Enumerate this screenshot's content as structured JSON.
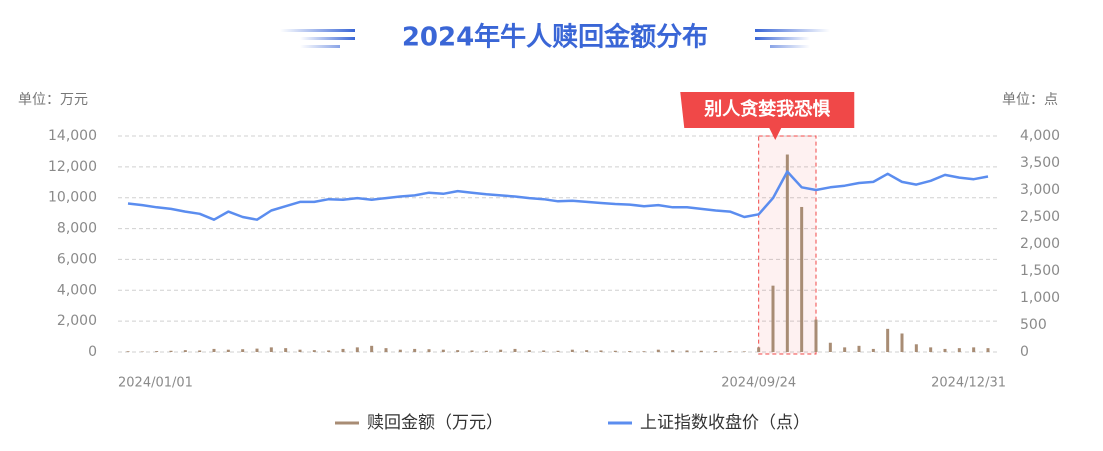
{
  "chart_data": {
    "type": "bar",
    "title": "2024年牛人赎回金额分布",
    "y_unit": "单位：万元",
    "y2_unit": "单位：点",
    "annotation": "别人贪婪我恐惧",
    "categories": [
      "2024/01/01",
      null,
      null,
      null,
      null,
      null,
      null,
      null,
      null,
      null,
      null,
      null,
      null,
      null,
      null,
      null,
      null,
      null,
      null,
      null,
      null,
      null,
      null,
      null,
      null,
      null,
      null,
      null,
      null,
      null,
      null,
      null,
      null,
      null,
      null,
      null,
      null,
      null,
      null,
      null,
      null,
      null,
      null,
      null,
      "2024/09/24",
      null,
      null,
      null,
      null,
      null,
      null,
      null,
      null,
      null,
      null,
      null,
      null,
      null,
      null,
      null,
      "2024/12/31"
    ],
    "series": [
      {
        "name": "赎回金额（万元）",
        "type": "bar",
        "color": "#a88c74",
        "values": [
          50,
          30,
          60,
          80,
          120,
          100,
          200,
          150,
          180,
          220,
          300,
          250,
          150,
          120,
          100,
          200,
          300,
          400,
          250,
          150,
          200,
          180,
          150,
          120,
          100,
          80,
          150,
          200,
          120,
          100,
          80,
          150,
          120,
          100,
          80,
          60,
          50,
          150,
          120,
          100,
          80,
          60,
          50,
          40,
          300,
          4300,
          12800,
          9400,
          2100,
          600,
          300,
          400,
          200,
          1500,
          1200,
          500,
          300,
          200,
          250,
          300,
          250
        ]
      },
      {
        "name": "上证指数收盘价（点）",
        "type": "line",
        "color": "#5b8def",
        "axis": "y2",
        "values": [
          2750,
          2720,
          2680,
          2650,
          2600,
          2560,
          2450,
          2600,
          2500,
          2450,
          2620,
          2700,
          2780,
          2780,
          2830,
          2820,
          2850,
          2820,
          2850,
          2880,
          2900,
          2950,
          2930,
          2980,
          2950,
          2920,
          2900,
          2880,
          2850,
          2830,
          2790,
          2800,
          2780,
          2760,
          2740,
          2730,
          2700,
          2720,
          2680,
          2680,
          2650,
          2620,
          2600,
          2500,
          2550,
          2850,
          3340,
          3050,
          3000,
          3050,
          3080,
          3130,
          3150,
          3300,
          3150,
          3100,
          3170,
          3280,
          3230,
          3200,
          3250
        ]
      }
    ],
    "ylim": [
      0,
      14000
    ],
    "yticks": [
      0,
      {
        "value": 2000,
        "label": "2,000"
      },
      {
        "value": 4000,
        "label": "4,000"
      },
      {
        "value": 6000,
        "label": "6,000"
      },
      {
        "value": 8000,
        "label": "8,000"
      },
      {
        "value": 10000,
        "label": "10,000"
      },
      {
        "value": 12000,
        "label": "12,000"
      },
      {
        "value": 14000,
        "label": "14,000"
      }
    ],
    "y2lim": [
      0,
      4000
    ],
    "y2ticks": [
      0,
      500,
      {
        "value": 1000,
        "label": "1,000"
      },
      {
        "value": 1500,
        "label": "1,500"
      },
      {
        "value": 2000,
        "label": "2,000"
      },
      {
        "value": 2500,
        "label": "2,500"
      },
      {
        "value": 3000,
        "label": "3,000"
      },
      {
        "value": 3500,
        "label": "3,500"
      },
      {
        "value": 4000,
        "label": "4,000"
      }
    ],
    "grid": true,
    "legend": "bottom"
  }
}
